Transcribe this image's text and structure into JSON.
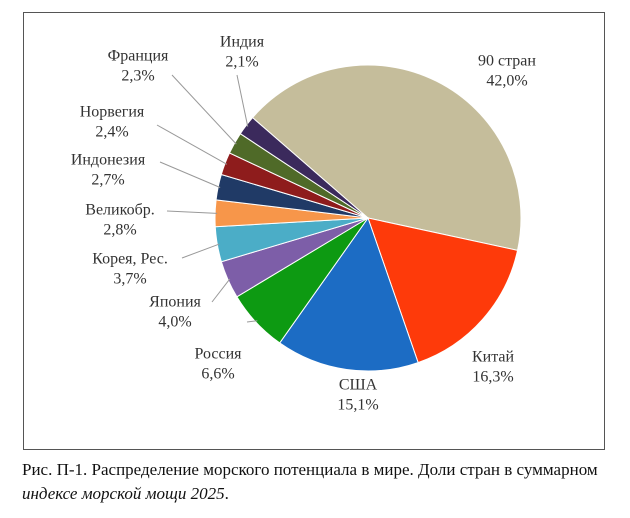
{
  "chart_data": {
    "type": "pie",
    "categories": [
      "90 стран",
      "Китай",
      "США",
      "Россия",
      "Япония",
      "Корея, Рес.",
      "Великобр.",
      "Индонезия",
      "Норвегия",
      "Франция",
      "Индия"
    ],
    "values": [
      42.0,
      16.3,
      15.1,
      6.6,
      4.0,
      3.7,
      2.8,
      2.7,
      2.4,
      2.3,
      2.1
    ],
    "value_labels": [
      "42,0%",
      "16,3%",
      "15,1%",
      "6,6%",
      "4,0%",
      "3,7%",
      "2,8%",
      "2,7%",
      "2,4%",
      "2,3%",
      "2,1%"
    ],
    "colors": [
      "#c5bd9b",
      "#fe3a0a",
      "#1c6cc4",
      "#0d9a12",
      "#7d5ea8",
      "#4badc7",
      "#f7964a",
      "#203a66",
      "#8e1c1c",
      "#4f6a28",
      "#3b2a5c"
    ]
  },
  "caption": {
    "text": "Рис. П-1. Распределение морского потенциала в мире. Доли стран в суммарном ",
    "emphasis": "индексе морской мощи 2025",
    "end": "."
  }
}
